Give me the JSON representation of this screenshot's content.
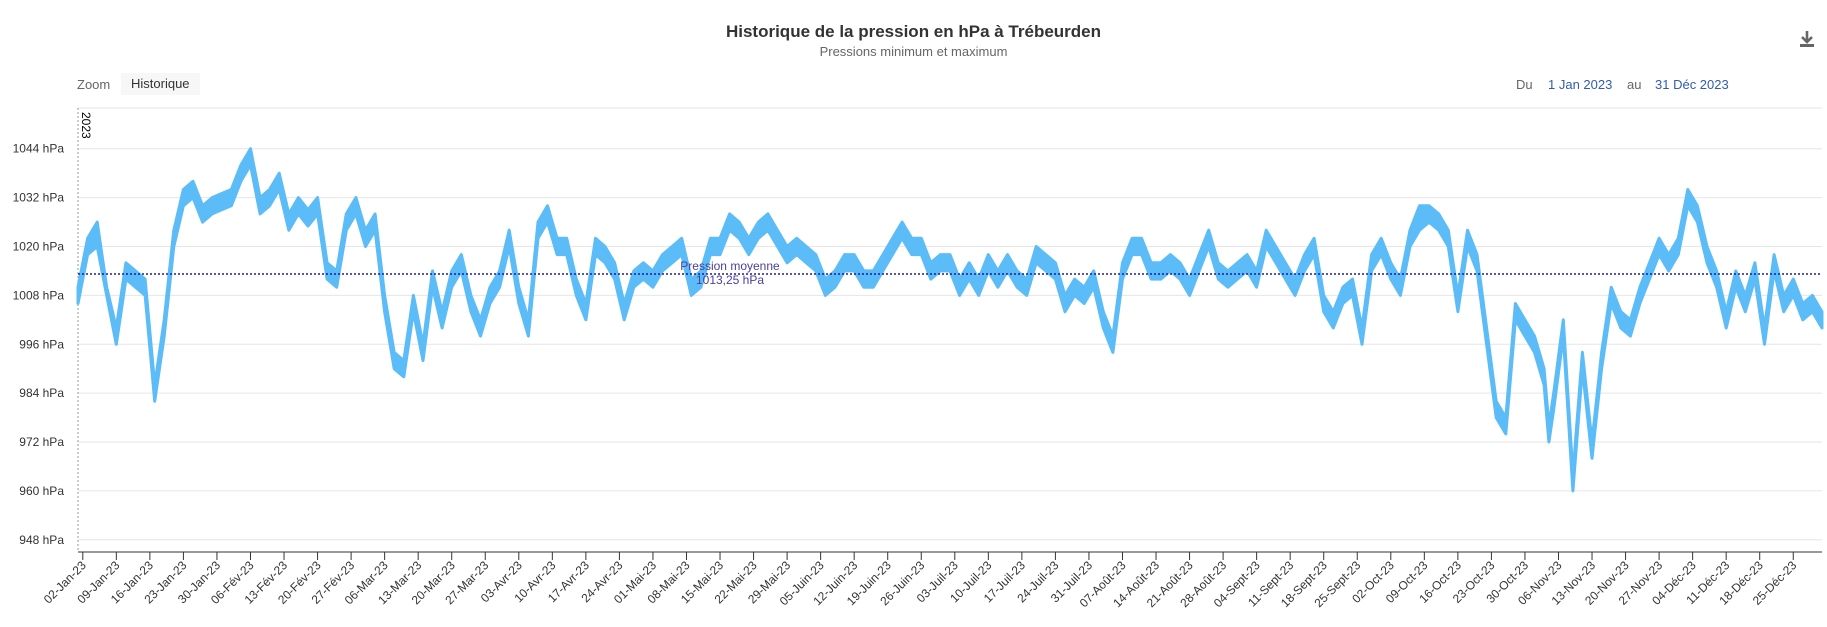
{
  "title": "Historique de la pression en hPa à Trébeurden",
  "subtitle": "Pressions minimum et maximum",
  "zoom": {
    "label": "Zoom",
    "button": "Historique"
  },
  "range": {
    "from_label": "Du",
    "from": "1 Jan 2023",
    "to_label": "au",
    "to": "31 Déc 2023"
  },
  "icons": {
    "download": "download-icon"
  },
  "colors": {
    "series": "#5bbcf7",
    "mean_line": "#1a1aa6",
    "mean_label": "#4a3fa0"
  },
  "chart_data": {
    "type": "area",
    "title": "Historique de la pression en hPa à Trébeurden",
    "subtitle": "Pressions minimum et maximum",
    "xlabel": "",
    "ylabel": "",
    "ylim": [
      945,
      1054
    ],
    "y_ticks": [
      948,
      960,
      972,
      984,
      996,
      1008,
      1020,
      1032,
      1044
    ],
    "y_tick_labels": [
      "948 hPa",
      "960 hPa",
      "972 hPa",
      "984 hPa",
      "996 hPa",
      "1008 hPa",
      "1020 hPa",
      "1032 hPa",
      "1044 hPa"
    ],
    "x_range": [
      "2023-01-01",
      "2023-12-31"
    ],
    "x_ticks": [
      "2023-01-02",
      "2023-01-09",
      "2023-01-16",
      "2023-01-23",
      "2023-01-30",
      "2023-02-06",
      "2023-02-13",
      "2023-02-20",
      "2023-02-27",
      "2023-03-06",
      "2023-03-13",
      "2023-03-20",
      "2023-03-27",
      "2023-04-03",
      "2023-04-10",
      "2023-04-17",
      "2023-04-24",
      "2023-05-01",
      "2023-05-08",
      "2023-05-15",
      "2023-05-22",
      "2023-05-29",
      "2023-06-05",
      "2023-06-12",
      "2023-06-19",
      "2023-06-26",
      "2023-07-03",
      "2023-07-10",
      "2023-07-17",
      "2023-07-24",
      "2023-07-31",
      "2023-08-07",
      "2023-08-14",
      "2023-08-21",
      "2023-08-28",
      "2023-09-04",
      "2023-09-11",
      "2023-09-18",
      "2023-09-25",
      "2023-10-02",
      "2023-10-09",
      "2023-10-16",
      "2023-10-23",
      "2023-10-30",
      "2023-11-06",
      "2023-11-13",
      "2023-11-20",
      "2023-11-27",
      "2023-12-04",
      "2023-12-11",
      "2023-12-18",
      "2023-12-25"
    ],
    "x_tick_labels": [
      "02-Jan-23",
      "09-Jan-23",
      "16-Jan-23",
      "23-Jan-23",
      "30-Jan-23",
      "06-Fév-23",
      "13-Fév-23",
      "20-Fév-23",
      "27-Fév-23",
      "06-Mar-23",
      "13-Mar-23",
      "20-Mar-23",
      "27-Mar-23",
      "03-Avr-23",
      "10-Avr-23",
      "17-Avr-23",
      "24-Avr-23",
      "01-Mai-23",
      "08-Mai-23",
      "15-Mai-23",
      "22-Mai-23",
      "29-Mai-23",
      "05-Juin-23",
      "12-Juin-23",
      "19-Juin-23",
      "26-Juin-23",
      "03-Juil-23",
      "10-Juil-23",
      "17-Juil-23",
      "24-Juil-23",
      "31-Juil-23",
      "07-Août-23",
      "14-Août-23",
      "21-Août-23",
      "28-Août-23",
      "04-Sept-23",
      "11-Sept-23",
      "18-Sept-23",
      "25-Sept-23",
      "02-Oct-23",
      "09-Oct-23",
      "16-Oct-23",
      "23-Oct-23",
      "30-Oct-23",
      "06-Nov-23",
      "13-Nov-23",
      "20-Nov-23",
      "27-Nov-23",
      "04-Déc-23",
      "11-Déc-23",
      "18-Déc-23",
      "25-Déc-23"
    ],
    "year_marker": {
      "date": "2023-01-01",
      "label": "2023"
    },
    "mean_line": {
      "value": 1013.25,
      "label_line1": "Pression moyenne",
      "label_line2": "1013,25 hPa"
    },
    "grid": true,
    "legend": "none",
    "series": [
      {
        "color": "#5bbcf7",
        "x": [
          "2023-01-01",
          "2023-01-03",
          "2023-01-05",
          "2023-01-07",
          "2023-01-09",
          "2023-01-11",
          "2023-01-13",
          "2023-01-15",
          "2023-01-17",
          "2023-01-19",
          "2023-01-21",
          "2023-01-23",
          "2023-01-25",
          "2023-01-27",
          "2023-01-29",
          "2023-01-31",
          "2023-02-02",
          "2023-02-04",
          "2023-02-06",
          "2023-02-08",
          "2023-02-10",
          "2023-02-12",
          "2023-02-14",
          "2023-02-16",
          "2023-02-18",
          "2023-02-20",
          "2023-02-22",
          "2023-02-24",
          "2023-02-26",
          "2023-02-28",
          "2023-03-02",
          "2023-03-04",
          "2023-03-06",
          "2023-03-08",
          "2023-03-10",
          "2023-03-12",
          "2023-03-14",
          "2023-03-16",
          "2023-03-18",
          "2023-03-20",
          "2023-03-22",
          "2023-03-24",
          "2023-03-26",
          "2023-03-28",
          "2023-03-30",
          "2023-04-01",
          "2023-04-03",
          "2023-04-05",
          "2023-04-07",
          "2023-04-09",
          "2023-04-11",
          "2023-04-13",
          "2023-04-15",
          "2023-04-17",
          "2023-04-19",
          "2023-04-21",
          "2023-04-23",
          "2023-04-25",
          "2023-04-27",
          "2023-04-29",
          "2023-05-01",
          "2023-05-03",
          "2023-05-05",
          "2023-05-07",
          "2023-05-09",
          "2023-05-11",
          "2023-05-13",
          "2023-05-15",
          "2023-05-17",
          "2023-05-19",
          "2023-05-21",
          "2023-05-23",
          "2023-05-25",
          "2023-05-27",
          "2023-05-29",
          "2023-05-31",
          "2023-06-02",
          "2023-06-04",
          "2023-06-06",
          "2023-06-08",
          "2023-06-10",
          "2023-06-12",
          "2023-06-14",
          "2023-06-16",
          "2023-06-18",
          "2023-06-20",
          "2023-06-22",
          "2023-06-24",
          "2023-06-26",
          "2023-06-28",
          "2023-06-30",
          "2023-07-02",
          "2023-07-04",
          "2023-07-06",
          "2023-07-08",
          "2023-07-10",
          "2023-07-12",
          "2023-07-14",
          "2023-07-16",
          "2023-07-18",
          "2023-07-20",
          "2023-07-22",
          "2023-07-24",
          "2023-07-26",
          "2023-07-28",
          "2023-07-30",
          "2023-08-01",
          "2023-08-03",
          "2023-08-05",
          "2023-08-07",
          "2023-08-09",
          "2023-08-11",
          "2023-08-13",
          "2023-08-15",
          "2023-08-17",
          "2023-08-19",
          "2023-08-21",
          "2023-08-23",
          "2023-08-25",
          "2023-08-27",
          "2023-08-29",
          "2023-08-31",
          "2023-09-02",
          "2023-09-04",
          "2023-09-06",
          "2023-09-08",
          "2023-09-10",
          "2023-09-12",
          "2023-09-14",
          "2023-09-16",
          "2023-09-18",
          "2023-09-20",
          "2023-09-22",
          "2023-09-24",
          "2023-09-26",
          "2023-09-28",
          "2023-09-30",
          "2023-10-02",
          "2023-10-04",
          "2023-10-06",
          "2023-10-08",
          "2023-10-10",
          "2023-10-12",
          "2023-10-14",
          "2023-10-16",
          "2023-10-18",
          "2023-10-20",
          "2023-10-22",
          "2023-10-24",
          "2023-10-26",
          "2023-10-28",
          "2023-10-30",
          "2023-11-01",
          "2023-11-02",
          "2023-11-03",
          "2023-11-04",
          "2023-11-05",
          "2023-11-07",
          "2023-11-09",
          "2023-11-11",
          "2023-11-13",
          "2023-11-15",
          "2023-11-17",
          "2023-11-19",
          "2023-11-21",
          "2023-11-23",
          "2023-11-25",
          "2023-11-27",
          "2023-11-29",
          "2023-12-01",
          "2023-12-03",
          "2023-12-05",
          "2023-12-07",
          "2023-12-09",
          "2023-12-11",
          "2023-12-13",
          "2023-12-15",
          "2023-12-17",
          "2023-12-19",
          "2023-12-21",
          "2023-12-23",
          "2023-12-25",
          "2023-12-27",
          "2023-12-29",
          "2023-12-31"
        ],
        "min": [
          1006,
          1018,
          1020,
          1008,
          996,
          1012,
          1010,
          1008,
          982,
          998,
          1020,
          1030,
          1032,
          1026,
          1028,
          1029,
          1030,
          1036,
          1040,
          1028,
          1030,
          1034,
          1024,
          1028,
          1025,
          1028,
          1012,
          1010,
          1024,
          1028,
          1020,
          1024,
          1004,
          990,
          988,
          1004,
          992,
          1010,
          1000,
          1010,
          1014,
          1004,
          998,
          1006,
          1010,
          1020,
          1006,
          998,
          1022,
          1026,
          1018,
          1018,
          1008,
          1002,
          1018,
          1016,
          1012,
          1002,
          1010,
          1012,
          1010,
          1014,
          1016,
          1018,
          1008,
          1010,
          1018,
          1018,
          1024,
          1022,
          1018,
          1022,
          1024,
          1020,
          1016,
          1018,
          1016,
          1014,
          1008,
          1010,
          1014,
          1014,
          1010,
          1010,
          1014,
          1018,
          1022,
          1018,
          1018,
          1012,
          1014,
          1014,
          1008,
          1012,
          1008,
          1014,
          1010,
          1014,
          1010,
          1008,
          1016,
          1014,
          1012,
          1004,
          1008,
          1006,
          1010,
          1000,
          994,
          1012,
          1018,
          1018,
          1012,
          1012,
          1014,
          1012,
          1008,
          1014,
          1020,
          1012,
          1010,
          1012,
          1014,
          1010,
          1020,
          1016,
          1012,
          1008,
          1014,
          1018,
          1004,
          1000,
          1006,
          1008,
          996,
          1014,
          1018,
          1012,
          1008,
          1020,
          1024,
          1026,
          1024,
          1020,
          1004,
          1020,
          1014,
          996,
          978,
          974,
          1002,
          998,
          994,
          990,
          986,
          972,
          980,
          998,
          960,
          990,
          968,
          990,
          1006,
          1000,
          998,
          1006,
          1012,
          1018,
          1014,
          1018,
          1030,
          1026,
          1016,
          1010,
          1000,
          1010,
          1004,
          1012,
          996,
          1014,
          1004,
          1008,
          1002,
          1004,
          1000,
          1026,
          1042,
          1032,
          1022,
          1026,
          1020,
          1016,
          1012,
          1006,
          990
        ],
        "max": [
          1010,
          1022,
          1026,
          1010,
          1000,
          1016,
          1014,
          1012,
          986,
          1002,
          1024,
          1034,
          1036,
          1030,
          1032,
          1033,
          1034,
          1040,
          1044,
          1032,
          1034,
          1038,
          1028,
          1032,
          1029,
          1032,
          1016,
          1014,
          1028,
          1032,
          1024,
          1028,
          1008,
          994,
          992,
          1008,
          996,
          1014,
          1004,
          1014,
          1018,
          1008,
          1002,
          1010,
          1014,
          1024,
          1010,
          1002,
          1026,
          1030,
          1022,
          1022,
          1012,
          1006,
          1022,
          1020,
          1016,
          1006,
          1014,
          1016,
          1014,
          1018,
          1020,
          1022,
          1012,
          1014,
          1022,
          1022,
          1028,
          1026,
          1022,
          1026,
          1028,
          1024,
          1020,
          1022,
          1020,
          1018,
          1012,
          1014,
          1018,
          1018,
          1014,
          1014,
          1018,
          1022,
          1026,
          1022,
          1022,
          1016,
          1018,
          1018,
          1012,
          1016,
          1012,
          1018,
          1014,
          1018,
          1014,
          1012,
          1020,
          1018,
          1016,
          1008,
          1012,
          1010,
          1014,
          1004,
          998,
          1016,
          1022,
          1022,
          1016,
          1016,
          1018,
          1016,
          1012,
          1018,
          1024,
          1016,
          1014,
          1016,
          1018,
          1014,
          1024,
          1020,
          1016,
          1012,
          1018,
          1022,
          1008,
          1004,
          1010,
          1012,
          1000,
          1018,
          1022,
          1016,
          1012,
          1024,
          1030,
          1030,
          1028,
          1024,
          1008,
          1024,
          1018,
          1000,
          982,
          978,
          1006,
          1002,
          998,
          994,
          990,
          976,
          984,
          1002,
          964,
          994,
          972,
          994,
          1010,
          1004,
          1002,
          1010,
          1016,
          1022,
          1018,
          1022,
          1034,
          1030,
          1020,
          1014,
          1004,
          1014,
          1008,
          1016,
          1000,
          1018,
          1008,
          1012,
          1006,
          1008,
          1004,
          1030,
          1046,
          1036,
          1026,
          1030,
          1024,
          1020,
          1016,
          1010,
          994
        ]
      }
    ]
  }
}
